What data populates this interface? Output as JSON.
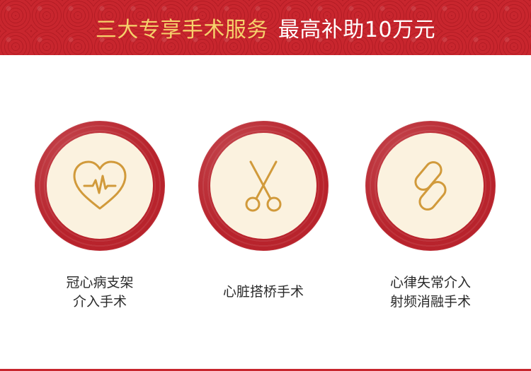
{
  "header": {
    "title_part1": "三大专享手术服务",
    "title_part2": "最高补助10万元"
  },
  "services": [
    {
      "icon": "heart-pulse-icon",
      "line1": "冠心病支架",
      "line2": "介入手术"
    },
    {
      "icon": "scissors-icon",
      "line1": "心脏搭桥手术",
      "line2": ""
    },
    {
      "icon": "link-icon",
      "line1": "心律失常介入",
      "line2": "射频消融手术"
    }
  ],
  "colors": {
    "banner_red": "#c8262e",
    "title_gold": "#f6d16b",
    "ring_red": "#b8232c",
    "disc_cream": "#fbf2df",
    "icon_gold": "#d19a3b"
  }
}
